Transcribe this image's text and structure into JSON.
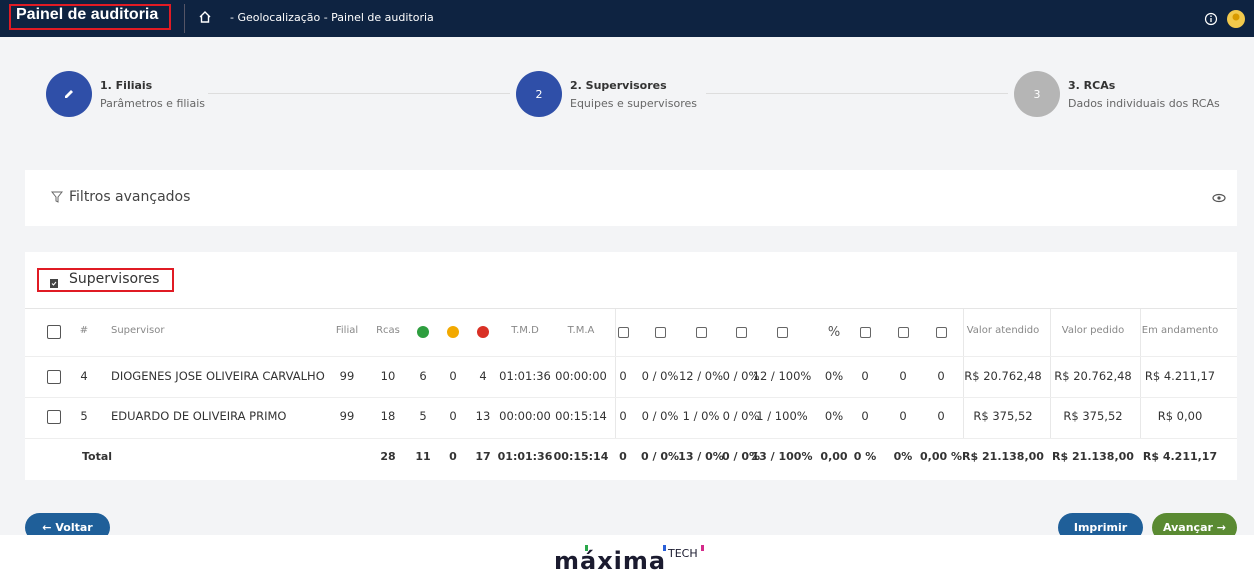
{
  "header": {
    "title": "Painel de auditoria",
    "breadcrumb": "- Geolocalização - Painel de auditoria"
  },
  "steps": [
    {
      "number": null,
      "title": "1. Filiais",
      "subtitle": "Parâmetros e filiais"
    },
    {
      "number": "2",
      "title": "2. Supervisores",
      "subtitle": "Equipes e supervisores"
    },
    {
      "number": "3",
      "title": "3. RCAs",
      "subtitle": "Dados individuais dos RCAs"
    }
  ],
  "filters": {
    "title": "Filtros avançados"
  },
  "table": {
    "title": "Supervisores",
    "header": [
      "#",
      "Supervisor",
      "Filial",
      "Rcas",
      null,
      null,
      null,
      "T.M.D",
      "T.M.A",
      null,
      null,
      null,
      null,
      null,
      "%",
      null,
      null,
      null,
      "Valor atendido",
      "Valor pedido",
      "Em andamento"
    ],
    "rows": [
      [
        "4",
        "DIOGENES JOSE OLIVEIRA CARVALHO",
        "99",
        "10",
        "6",
        "0",
        "4",
        "01:01:36",
        "00:00:00",
        "0",
        "0 / 0%",
        "12 / 0%",
        "0 / 0%",
        "12 / 100%",
        "0%",
        "0",
        "0",
        "0",
        "R$ 20.762,48",
        "R$ 20.762,48",
        "R$ 4.211,17"
      ],
      [
        "5",
        "EDUARDO DE OLIVEIRA PRIMO",
        "99",
        "18",
        "5",
        "0",
        "13",
        "00:00:00",
        "00:15:14",
        "0",
        "0 / 0%",
        "1 / 0%",
        "0 / 0%",
        "1 / 100%",
        "0%",
        "0",
        "0",
        "0",
        "R$ 375,52",
        "R$ 375,52",
        "R$ 0,00"
      ]
    ],
    "total": [
      "Total",
      null,
      null,
      "28",
      "11",
      "0",
      "17",
      "01:01:36",
      "00:15:14",
      "0",
      "0 / 0%",
      "13 / 0%",
      "0 / 0%",
      "13 / 100%",
      "0,00",
      "0 %",
      "0%",
      "0,00 %",
      "R$ 21.138,00",
      "R$ 21.138,00",
      "R$ 4.211,17"
    ]
  },
  "buttons": {
    "back": "Voltar",
    "print": "Imprimir",
    "next": "Avançar"
  },
  "footer": {
    "logo": "máxima",
    "logo_suffix": "TECH"
  }
}
